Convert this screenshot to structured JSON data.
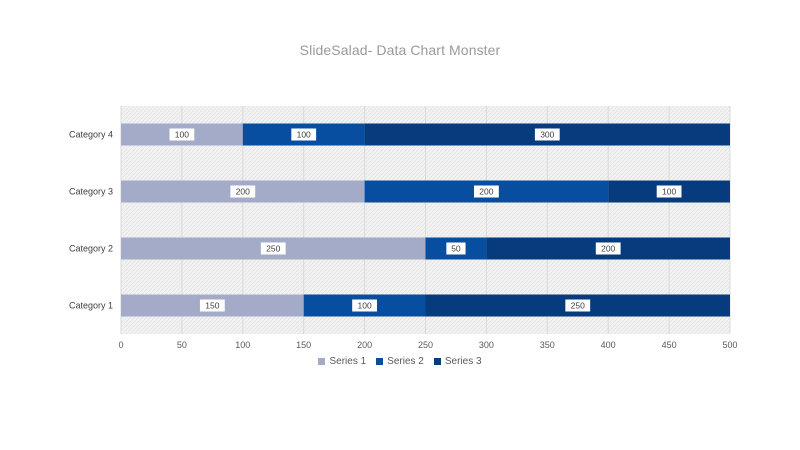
{
  "chart_data": {
    "type": "bar",
    "orientation": "horizontal",
    "stacked": true,
    "title": "SlideSalad- Data Chart Monster",
    "categories": [
      "Category 1",
      "Category 2",
      "Category 3",
      "Category 4"
    ],
    "series": [
      {
        "name": "Series 1",
        "values": [
          150,
          250,
          200,
          100
        ],
        "color": "#a3abc9"
      },
      {
        "name": "Series 2",
        "values": [
          100,
          50,
          200,
          100
        ],
        "color": "#084ea0"
      },
      {
        "name": "Series 3",
        "values": [
          250,
          200,
          100,
          300
        ],
        "color": "#063b7d"
      }
    ],
    "xlim": [
      0,
      500
    ],
    "x_ticks": [
      0,
      50,
      100,
      150,
      200,
      250,
      300,
      350,
      400,
      450,
      500
    ],
    "data_labels": true,
    "grid": true,
    "legend_position": "bottom",
    "plot_background": "#f2f2f2",
    "gridline_color": "#d9d9d9"
  }
}
